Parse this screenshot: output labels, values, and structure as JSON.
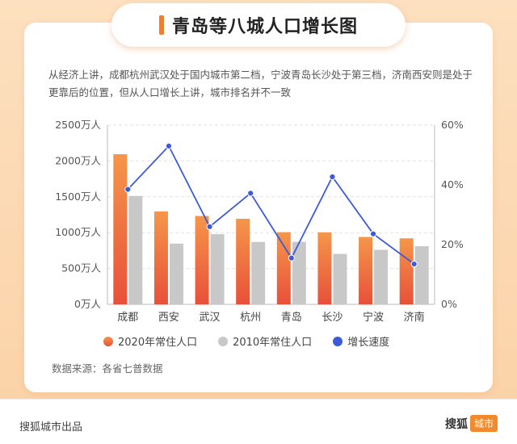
{
  "title": "青岛等八城人口增长图",
  "description": "从经济上讲，成都杭州武汉处于国内城市第二档，宁波青岛长沙处于第三档，济南西安则是处于更靠后的位置，但从人口增长上讲，城市排名并不一致",
  "source": "数据来源：各省七普数据",
  "footer": {
    "left": "搜狐城市出品",
    "brand": "搜狐",
    "brand_tag": "城市"
  },
  "colors": {
    "bar2020_top": "#f5964a",
    "bar2020_bottom": "#e8503a",
    "bar2010": "#c8c8c8",
    "line": "#3d5bd8"
  },
  "chart_data": {
    "type": "bar",
    "categories": [
      "成都",
      "西安",
      "武汉",
      "杭州",
      "青岛",
      "长沙",
      "宁波",
      "济南"
    ],
    "series": [
      {
        "name": "2020年常住人口",
        "type": "bar",
        "axis": "left",
        "values": [
          2094,
          1296,
          1233,
          1194,
          1007,
          1005,
          940,
          921
        ]
      },
      {
        "name": "2010年常住人口",
        "type": "bar",
        "axis": "left",
        "values": [
          1512,
          847,
          979,
          870,
          872,
          704,
          761,
          811
        ]
      },
      {
        "name": "增长速度",
        "type": "line",
        "axis": "right",
        "values": [
          38.5,
          53,
          26,
          37.2,
          15.5,
          42.7,
          23.6,
          13.5
        ]
      }
    ],
    "left_axis": {
      "ylim": [
        0,
        2500
      ],
      "ticks": [
        "0万人",
        "500万人",
        "1000万人",
        "1500万人",
        "2000万人",
        "2500万人"
      ]
    },
    "right_axis": {
      "ylim": [
        0,
        60
      ],
      "ticks": [
        "0%",
        "20%",
        "40%",
        "60%"
      ]
    },
    "grid": true,
    "legend_position": "bottom"
  }
}
